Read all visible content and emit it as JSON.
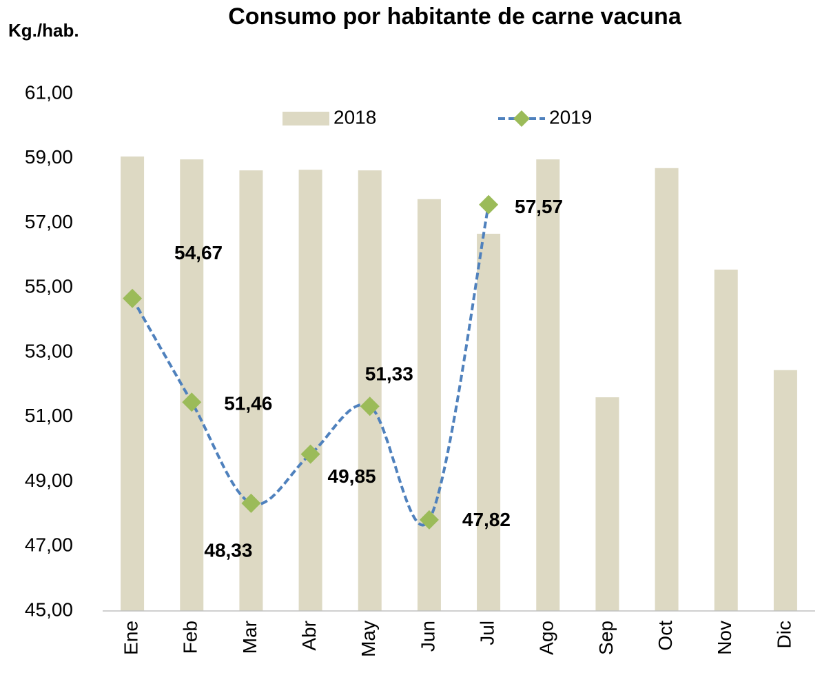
{
  "chart_data": {
    "type": "bar-line",
    "title": "Consumo por habitante de carne vacuna",
    "ylabel": "Kg./hab.",
    "categories": [
      "Ene",
      "Feb",
      "Mar",
      "Abr",
      "May",
      "Jun",
      "Jul",
      "Ago",
      "Sep",
      "Oct",
      "Nov",
      "Dic"
    ],
    "series": [
      {
        "name": "2018",
        "type": "bar",
        "color": "#ddd9c3",
        "values": [
          59.06,
          58.97,
          58.63,
          58.65,
          58.63,
          57.74,
          56.67,
          58.97,
          51.61,
          58.7,
          55.56,
          52.45
        ]
      },
      {
        "name": "2019",
        "type": "line",
        "color": "#4f81bd",
        "marker_color": "#9bbb59",
        "values": [
          54.67,
          51.46,
          48.33,
          49.85,
          51.33,
          47.82,
          57.57,
          null,
          null,
          null,
          null,
          null
        ],
        "value_labels": [
          "54,67",
          "51,46",
          "48,33",
          "49,85",
          "51,33",
          "47,82",
          "57,57",
          null,
          null,
          null,
          null,
          null
        ]
      }
    ],
    "ylim": [
      45,
      61
    ],
    "yticks": [
      {
        "value": 45,
        "label": "45,00"
      },
      {
        "value": 47,
        "label": "47,00"
      },
      {
        "value": 49,
        "label": "49,00"
      },
      {
        "value": 51,
        "label": "51,00"
      },
      {
        "value": 53,
        "label": "53,00"
      },
      {
        "value": 55,
        "label": "55,00"
      },
      {
        "value": 57,
        "label": "57,00"
      },
      {
        "value": 59,
        "label": "59,00"
      },
      {
        "value": 61,
        "label": "61,00"
      }
    ],
    "grid": false,
    "legend": "top"
  }
}
